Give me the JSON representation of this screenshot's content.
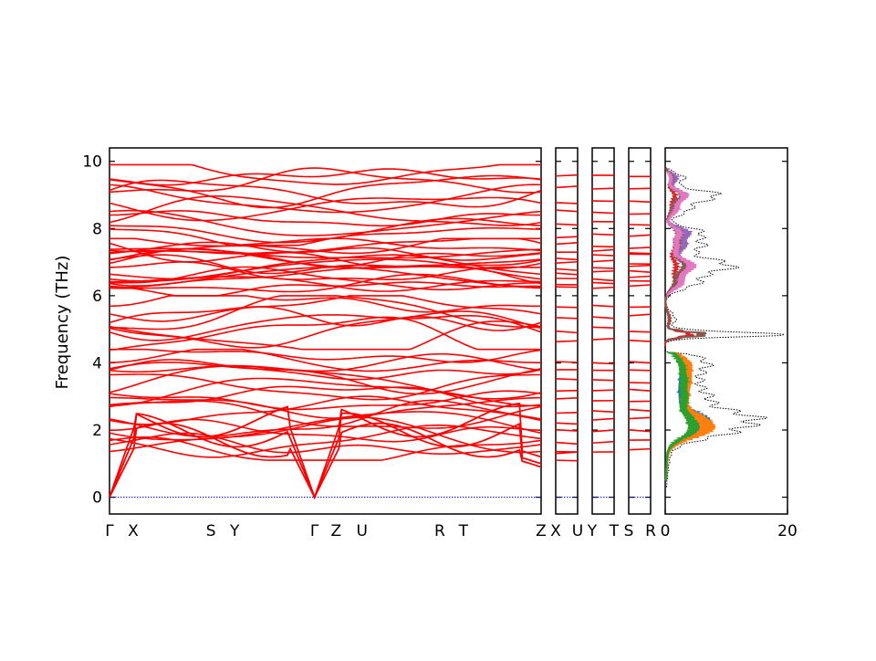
{
  "chart_data": {
    "type": "line",
    "ylabel": "Frequency (THz)",
    "ylim": [
      -0.5,
      10.4
    ],
    "y_ticks": [
      0,
      2,
      4,
      6,
      8,
      10
    ],
    "band_color": "#ff0000",
    "zero_line_color": "#0000cc",
    "band_panels": [
      {
        "ticks": [
          "Γ",
          "X",
          "S",
          "Y",
          "Γ",
          "Z",
          "U",
          "R",
          "T",
          "Z"
        ],
        "tick_pos": [
          0,
          0.055,
          0.235,
          0.29,
          0.475,
          0.525,
          0.585,
          0.765,
          0.82,
          1.0
        ]
      },
      {
        "ticks": [
          "X",
          "U"
        ],
        "tick_pos": [
          0,
          1
        ]
      },
      {
        "ticks": [
          "Y",
          "T"
        ],
        "tick_pos": [
          0,
          1
        ]
      },
      {
        "ticks": [
          "S",
          "R"
        ],
        "tick_pos": [
          0,
          1
        ]
      }
    ],
    "dos": {
      "x_ticks": [
        0,
        20
      ],
      "xlim": [
        0,
        20
      ],
      "series_colors": [
        "#1f77b4",
        "#ff7f0e",
        "#2ca02c",
        "#d62728",
        "#9467bd",
        "#8c564b",
        "#e377c2"
      ],
      "total_color": "#000000"
    }
  }
}
